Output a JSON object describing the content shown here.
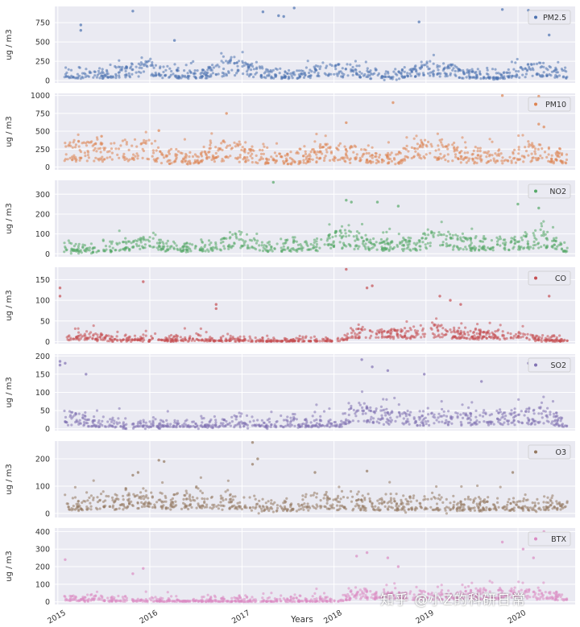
{
  "chart_data": {
    "type": "scatter",
    "xlabel": "Years",
    "ylabel": "ug / m3",
    "x_range": [
      "2014-12-20",
      "2020-08-15"
    ],
    "x_ticks": [
      "2015",
      "2016",
      "2017",
      "2018",
      "2019",
      "2020"
    ],
    "grid": true,
    "legend_position": "upper right",
    "panels": [
      {
        "name": "PM2.5",
        "color": "#4c72b0",
        "ylim": [
          -30,
          960
        ],
        "yticks": [
          0,
          250,
          500,
          750
        ],
        "baseline": [
          [
            0,
            110
          ],
          [
            0.09,
            100
          ],
          [
            0.14,
            180
          ],
          [
            0.17,
            240
          ],
          [
            0.2,
            120
          ],
          [
            0.27,
            90
          ],
          [
            0.33,
            250
          ],
          [
            0.36,
            220
          ],
          [
            0.4,
            110
          ],
          [
            0.46,
            80
          ],
          [
            0.52,
            190
          ],
          [
            0.56,
            160
          ],
          [
            0.6,
            100
          ],
          [
            0.66,
            80
          ],
          [
            0.72,
            190
          ],
          [
            0.77,
            170
          ],
          [
            0.8,
            100
          ],
          [
            0.86,
            70
          ],
          [
            0.92,
            170
          ],
          [
            0.95,
            190
          ],
          [
            1,
            80
          ]
        ],
        "spread": 70,
        "outliers": [
          [
            0.05,
            650
          ],
          [
            0.05,
            720
          ],
          [
            0.15,
            900
          ],
          [
            0.23,
            520
          ],
          [
            0.4,
            890
          ],
          [
            0.43,
            840
          ],
          [
            0.44,
            830
          ],
          [
            0.46,
            940
          ],
          [
            0.7,
            760
          ],
          [
            0.86,
            920
          ],
          [
            0.91,
            910
          ],
          [
            0.95,
            590
          ]
        ]
      },
      {
        "name": "PM10",
        "color": "#dd8452",
        "ylim": [
          -40,
          1030
        ],
        "yticks": [
          0,
          250,
          500,
          750,
          1000
        ],
        "baseline": [
          [
            0,
            300
          ],
          [
            0.06,
            260
          ],
          [
            0.12,
            320
          ],
          [
            0.16,
            330
          ],
          [
            0.2,
            180
          ],
          [
            0.26,
            140
          ],
          [
            0.3,
            300
          ],
          [
            0.34,
            280
          ],
          [
            0.4,
            170
          ],
          [
            0.46,
            140
          ],
          [
            0.52,
            260
          ],
          [
            0.56,
            230
          ],
          [
            0.6,
            170
          ],
          [
            0.66,
            160
          ],
          [
            0.72,
            330
          ],
          [
            0.76,
            300
          ],
          [
            0.8,
            220
          ],
          [
            0.86,
            140
          ],
          [
            0.92,
            280
          ],
          [
            0.95,
            260
          ],
          [
            1,
            140
          ]
        ],
        "spread": 110,
        "outliers": [
          [
            0.09,
            430
          ],
          [
            0.2,
            510
          ],
          [
            0.33,
            750
          ],
          [
            0.56,
            620
          ],
          [
            0.65,
            900
          ],
          [
            0.86,
            1000
          ],
          [
            0.93,
            990
          ],
          [
            0.93,
            600
          ],
          [
            0.94,
            560
          ]
        ]
      },
      {
        "name": "NO2",
        "color": "#55a868",
        "ylim": [
          -15,
          370
        ],
        "yticks": [
          0,
          100,
          200,
          300
        ],
        "baseline": [
          [
            0,
            40
          ],
          [
            0.06,
            30
          ],
          [
            0.13,
            60
          ],
          [
            0.18,
            80
          ],
          [
            0.2,
            40
          ],
          [
            0.3,
            40
          ],
          [
            0.33,
            90
          ],
          [
            0.37,
            70
          ],
          [
            0.4,
            40
          ],
          [
            0.5,
            50
          ],
          [
            0.54,
            110
          ],
          [
            0.58,
            90
          ],
          [
            0.62,
            50
          ],
          [
            0.7,
            60
          ],
          [
            0.74,
            110
          ],
          [
            0.8,
            60
          ],
          [
            0.9,
            60
          ],
          [
            0.94,
            110
          ],
          [
            0.97,
            70
          ],
          [
            1,
            30
          ]
        ],
        "spread": 35,
        "outliers": [
          [
            0.42,
            360
          ],
          [
            0.56,
            270
          ],
          [
            0.57,
            260
          ],
          [
            0.62,
            260
          ],
          [
            0.66,
            240
          ],
          [
            0.89,
            250
          ],
          [
            0.92,
            290
          ],
          [
            0.93,
            230
          ]
        ]
      },
      {
        "name": "CO",
        "color": "#c44e52",
        "ylim": [
          -5,
          180
        ],
        "yticks": [
          0,
          50,
          100,
          150
        ],
        "baseline": [
          [
            0,
            12
          ],
          [
            0.05,
            14
          ],
          [
            0.1,
            8
          ],
          [
            0.3,
            6
          ],
          [
            0.36,
            6
          ],
          [
            0.4,
            3
          ],
          [
            0.55,
            3
          ],
          [
            0.58,
            30
          ],
          [
            0.62,
            25
          ],
          [
            0.7,
            28
          ],
          [
            0.74,
            35
          ],
          [
            0.8,
            20
          ],
          [
            0.9,
            20
          ],
          [
            0.94,
            10
          ],
          [
            1,
            4
          ]
        ],
        "spread": 12,
        "outliers": [
          [
            0.01,
            130
          ],
          [
            0.01,
            110
          ],
          [
            0.17,
            145
          ],
          [
            0.31,
            90
          ],
          [
            0.31,
            80
          ],
          [
            0.56,
            175
          ],
          [
            0.6,
            130
          ],
          [
            0.61,
            135
          ],
          [
            0.74,
            110
          ],
          [
            0.76,
            100
          ],
          [
            0.78,
            90
          ],
          [
            0.95,
            110
          ]
        ]
      },
      {
        "name": "SO2",
        "color": "#8172b3",
        "ylim": [
          -5,
          205
        ],
        "yticks": [
          0,
          50,
          100,
          150,
          200
        ],
        "baseline": [
          [
            0,
            40
          ],
          [
            0.04,
            30
          ],
          [
            0.08,
            15
          ],
          [
            0.3,
            15
          ],
          [
            0.34,
            25
          ],
          [
            0.4,
            15
          ],
          [
            0.55,
            20
          ],
          [
            0.58,
            60
          ],
          [
            0.62,
            50
          ],
          [
            0.7,
            30
          ],
          [
            0.74,
            40
          ],
          [
            0.8,
            30
          ],
          [
            0.9,
            40
          ],
          [
            0.94,
            50
          ],
          [
            1,
            20
          ]
        ],
        "spread": 22,
        "outliers": [
          [
            0.01,
            185
          ],
          [
            0.01,
            175
          ],
          [
            0.02,
            180
          ],
          [
            0.06,
            150
          ],
          [
            0.59,
            190
          ],
          [
            0.61,
            170
          ],
          [
            0.64,
            160
          ],
          [
            0.71,
            150
          ],
          [
            0.82,
            130
          ],
          [
            0.91,
            180
          ],
          [
            0.92,
            170
          ],
          [
            0.93,
            160
          ]
        ]
      },
      {
        "name": "O3",
        "color": "#937860",
        "ylim": [
          -15,
          265
        ],
        "yticks": [
          0,
          100,
          200
        ],
        "baseline": [
          [
            0,
            40
          ],
          [
            0.1,
            50
          ],
          [
            0.14,
            70
          ],
          [
            0.2,
            50
          ],
          [
            0.26,
            60
          ],
          [
            0.3,
            55
          ],
          [
            0.36,
            40
          ],
          [
            0.45,
            30
          ],
          [
            0.5,
            50
          ],
          [
            0.6,
            45
          ],
          [
            0.7,
            40
          ],
          [
            0.8,
            35
          ],
          [
            0.9,
            40
          ],
          [
            1,
            45
          ]
        ],
        "spread": 35,
        "outliers": [
          [
            0.15,
            140
          ],
          [
            0.16,
            150
          ],
          [
            0.2,
            195
          ],
          [
            0.21,
            190
          ],
          [
            0.38,
            180
          ],
          [
            0.38,
            260
          ],
          [
            0.39,
            200
          ],
          [
            0.5,
            150
          ],
          [
            0.6,
            155
          ],
          [
            0.88,
            150
          ]
        ]
      },
      {
        "name": "BTX",
        "color": "#da8bc3",
        "ylim": [
          -15,
          420
        ],
        "yticks": [
          0,
          100,
          200,
          300,
          400
        ],
        "baseline": [
          [
            0,
            20
          ],
          [
            0.1,
            15
          ],
          [
            0.2,
            10
          ],
          [
            0.4,
            8
          ],
          [
            0.55,
            10
          ],
          [
            0.58,
            60
          ],
          [
            0.62,
            50
          ],
          [
            0.7,
            40
          ],
          [
            0.8,
            50
          ],
          [
            0.9,
            60
          ],
          [
            0.95,
            50
          ],
          [
            1,
            30
          ]
        ],
        "spread": 30,
        "outliers": [
          [
            0.02,
            240
          ],
          [
            0.15,
            160
          ],
          [
            0.17,
            190
          ],
          [
            0.58,
            260
          ],
          [
            0.6,
            280
          ],
          [
            0.64,
            250
          ],
          [
            0.66,
            200
          ],
          [
            0.86,
            340
          ],
          [
            0.9,
            300
          ],
          [
            0.94,
            400
          ],
          [
            0.92,
            250
          ]
        ]
      }
    ]
  },
  "watermark": "知乎 @小Z的科研日常"
}
